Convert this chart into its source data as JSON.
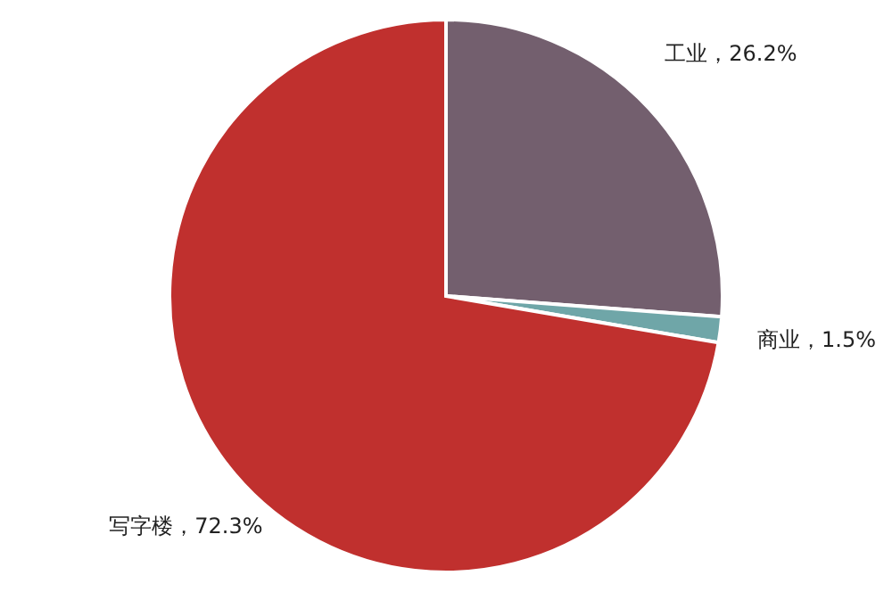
{
  "chart_data": {
    "type": "pie",
    "categories": [
      "工业",
      "商业",
      "写字楼"
    ],
    "values": [
      26.2,
      1.5,
      72.3
    ],
    "colors": [
      "#735f6e",
      "#6fa6a8",
      "#c0302e"
    ],
    "value_labels": [
      "，26.2%",
      "，1.5%",
      "，72.3%"
    ]
  }
}
